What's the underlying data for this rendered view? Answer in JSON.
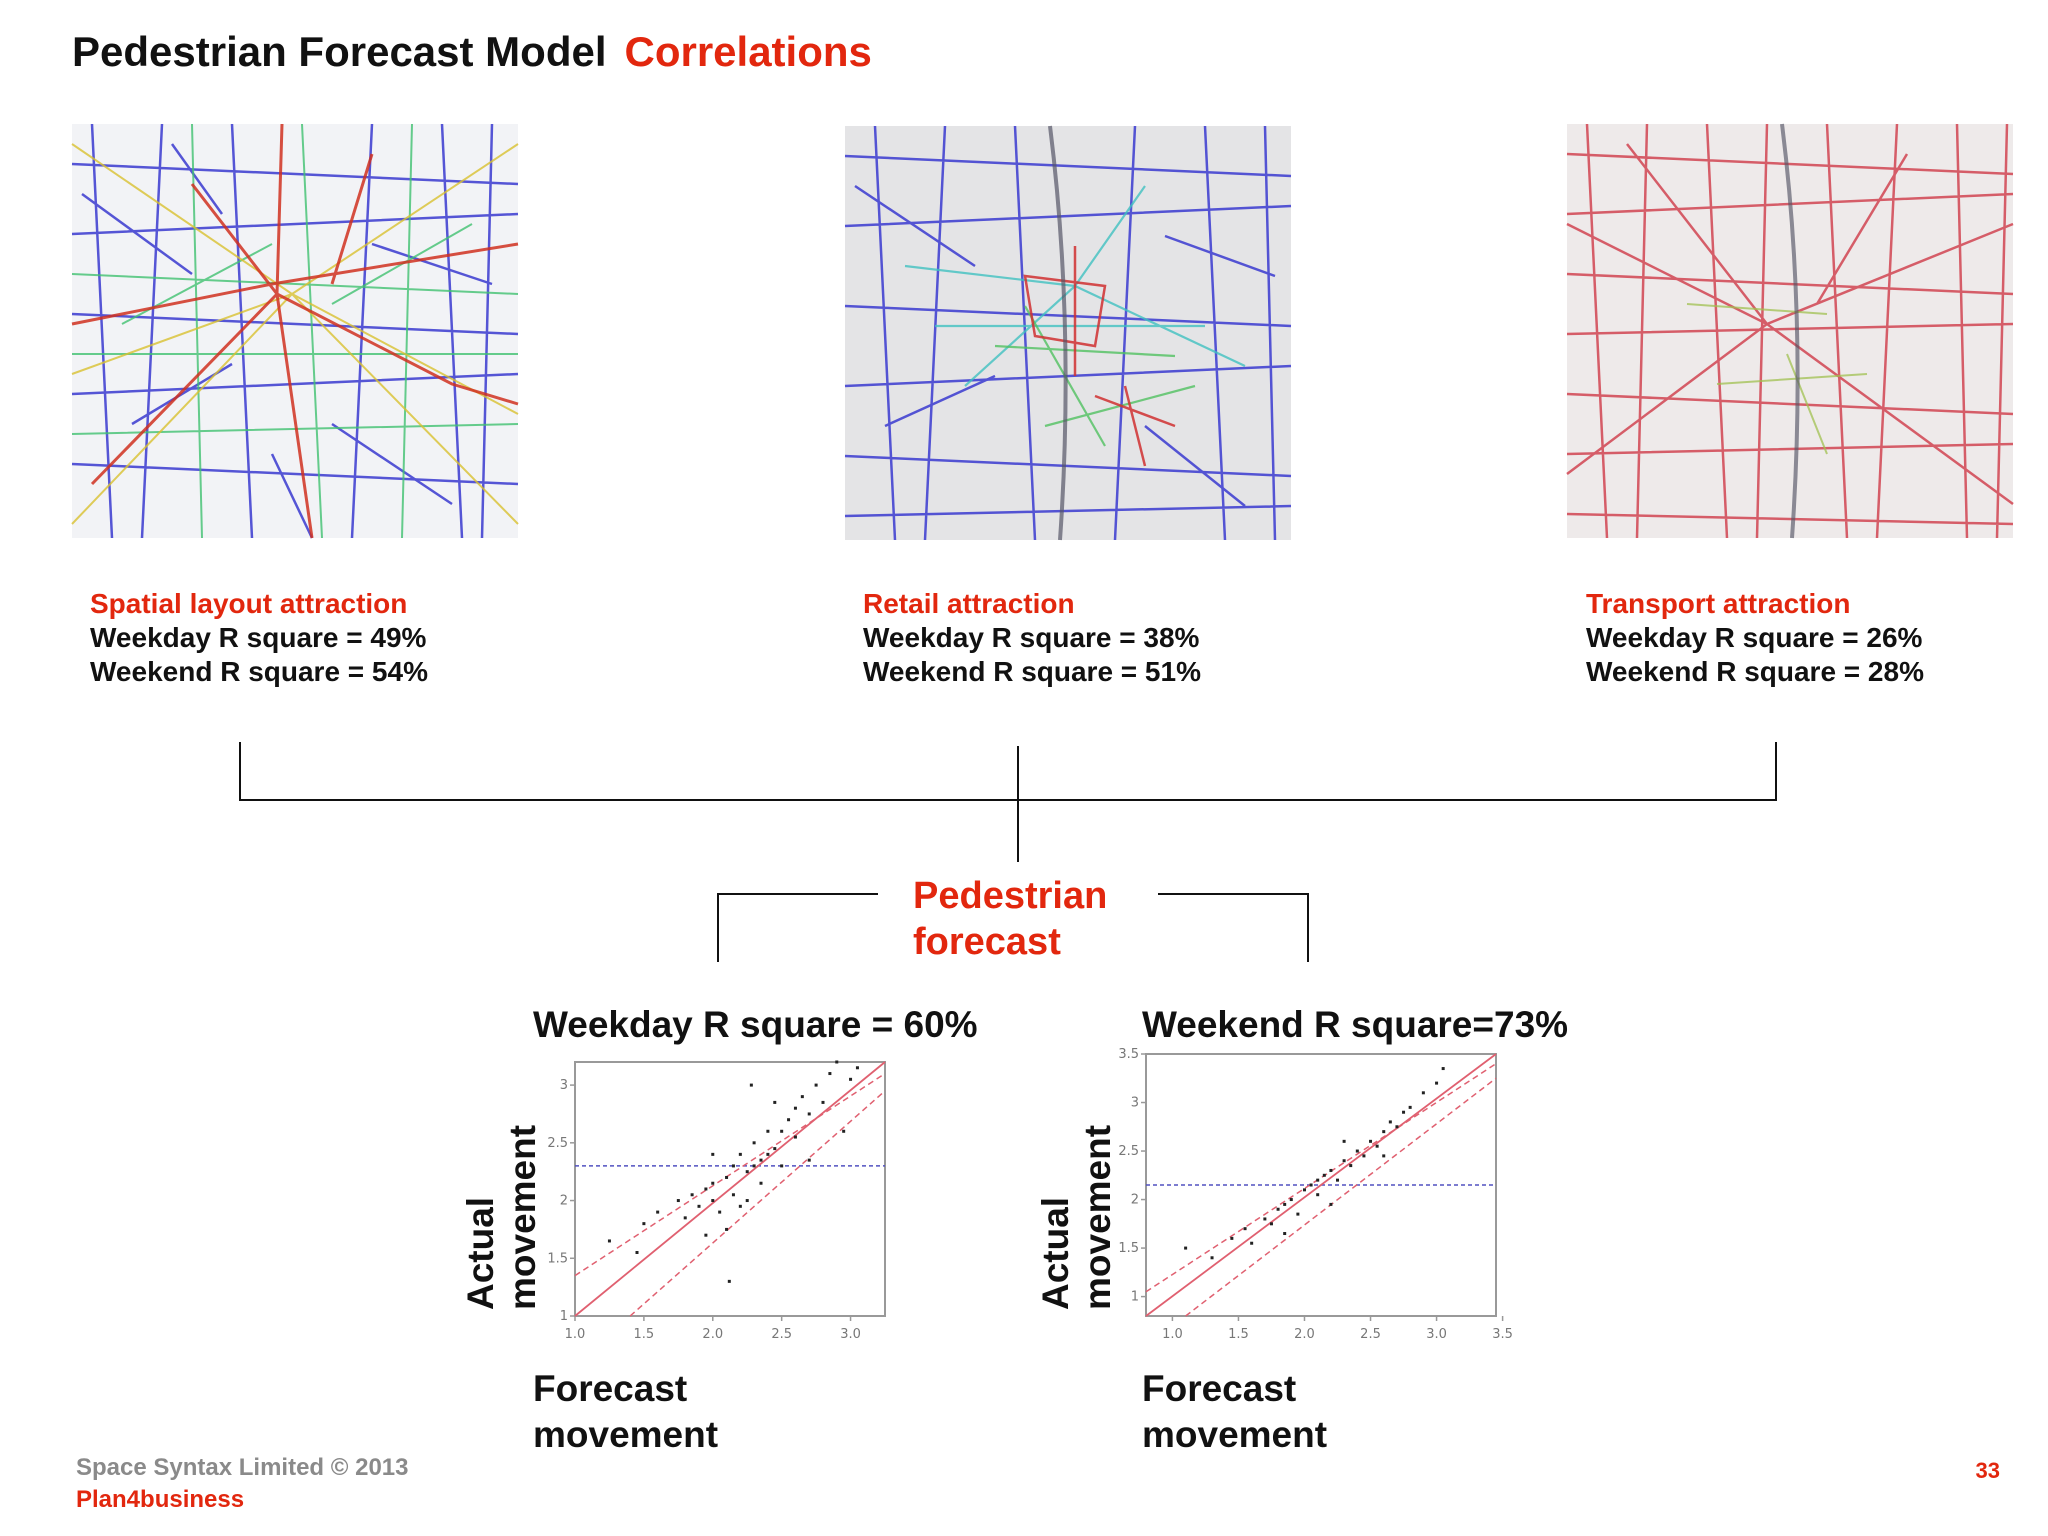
{
  "title": {
    "main": "Pedestrian Forecast Model",
    "accent": "Correlations"
  },
  "maps": [
    {
      "heading": "Spatial layout attraction",
      "weekday": "Weekday  R square = 49%",
      "weekend": "Weekend  R square = 54%"
    },
    {
      "heading": "Retail attraction",
      "weekday": "Weekday  R square = 38%",
      "weekend": "Weekend  R square = 51%"
    },
    {
      "heading": "Transport attraction",
      "weekday": "Weekday  R square = 26%",
      "weekend": "Weekend  R square = 28%"
    }
  ],
  "result": {
    "line1": "Pedestrian",
    "line2": "forecast"
  },
  "colors": {
    "accent": "#e2270e",
    "fit_line": "#e06070",
    "mean_line": "#5050c0",
    "point": "#222222"
  },
  "chart_data": [
    {
      "type": "scatter",
      "title": "Weekday R square = 60%",
      "xlabel": [
        "Forecast",
        "movement"
      ],
      "ylabel": [
        "Actual",
        "movement"
      ],
      "xlim": [
        1.0,
        3.25
      ],
      "ylim": [
        1.0,
        3.2
      ],
      "xticks": [
        "1.0",
        "1.5",
        "2.0",
        "2.5",
        "3.0"
      ],
      "yticks": [
        "1",
        "1.5",
        "2",
        "2.5",
        "3"
      ],
      "mean_y": 2.3,
      "fit": [
        [
          1.0,
          1.0
        ],
        [
          3.25,
          3.2
        ]
      ],
      "conf_upper": [
        [
          1.0,
          1.35
        ],
        [
          3.25,
          3.1
        ]
      ],
      "conf_lower": [
        [
          1.4,
          1.0
        ],
        [
          3.25,
          2.95
        ]
      ],
      "points": [
        [
          1.25,
          1.65
        ],
        [
          1.45,
          1.55
        ],
        [
          1.5,
          1.8
        ],
        [
          1.6,
          1.9
        ],
        [
          1.75,
          2.0
        ],
        [
          1.8,
          1.85
        ],
        [
          1.85,
          2.05
        ],
        [
          1.9,
          1.95
        ],
        [
          1.95,
          2.1
        ],
        [
          2.0,
          2.0
        ],
        [
          2.0,
          2.15
        ],
        [
          2.05,
          1.9
        ],
        [
          2.1,
          2.2
        ],
        [
          2.1,
          1.75
        ],
        [
          2.15,
          2.3
        ],
        [
          2.15,
          2.05
        ],
        [
          2.2,
          2.4
        ],
        [
          2.2,
          1.95
        ],
        [
          2.25,
          2.25
        ],
        [
          2.3,
          2.3
        ],
        [
          2.3,
          2.5
        ],
        [
          2.35,
          2.35
        ],
        [
          2.35,
          2.15
        ],
        [
          2.4,
          2.6
        ],
        [
          2.4,
          2.4
        ],
        [
          2.45,
          2.45
        ],
        [
          2.5,
          2.6
        ],
        [
          2.5,
          2.3
        ],
        [
          2.55,
          2.7
        ],
        [
          2.6,
          2.8
        ],
        [
          2.6,
          2.55
        ],
        [
          2.65,
          2.9
        ],
        [
          2.7,
          2.75
        ],
        [
          2.75,
          3.0
        ],
        [
          2.8,
          2.85
        ],
        [
          2.85,
          3.1
        ],
        [
          2.9,
          3.2
        ],
        [
          2.95,
          2.6
        ],
        [
          3.0,
          3.05
        ],
        [
          3.05,
          3.15
        ],
        [
          2.25,
          2.0
        ],
        [
          2.28,
          3.0
        ],
        [
          2.12,
          1.3
        ],
        [
          1.95,
          1.7
        ],
        [
          2.0,
          2.4
        ],
        [
          2.45,
          2.85
        ],
        [
          2.7,
          2.35
        ]
      ]
    },
    {
      "type": "scatter",
      "title": "Weekend R square=73%",
      "xlabel": [
        "Forecast",
        "movement"
      ],
      "ylabel": [
        "Actual",
        "movement"
      ],
      "xlim": [
        0.8,
        3.45
      ],
      "ylim": [
        0.8,
        3.5
      ],
      "xticks": [
        "1.0",
        "1.5",
        "2.0",
        "2.5",
        "3.0",
        "3.5"
      ],
      "yticks": [
        "1",
        "1.5",
        "2",
        "2.5",
        "3",
        "3.5"
      ],
      "mean_y": 2.15,
      "fit": [
        [
          0.8,
          0.8
        ],
        [
          3.45,
          3.5
        ]
      ],
      "conf_upper": [
        [
          0.8,
          1.05
        ],
        [
          3.45,
          3.4
        ]
      ],
      "conf_lower": [
        [
          1.1,
          0.8
        ],
        [
          3.45,
          3.25
        ]
      ],
      "points": [
        [
          1.1,
          1.5
        ],
        [
          1.3,
          1.4
        ],
        [
          1.45,
          1.6
        ],
        [
          1.55,
          1.7
        ],
        [
          1.6,
          1.55
        ],
        [
          1.7,
          1.8
        ],
        [
          1.75,
          1.75
        ],
        [
          1.8,
          1.9
        ],
        [
          1.85,
          1.95
        ],
        [
          1.9,
          2.0
        ],
        [
          1.95,
          1.85
        ],
        [
          2.0,
          2.1
        ],
        [
          2.05,
          2.15
        ],
        [
          2.1,
          2.05
        ],
        [
          2.1,
          2.2
        ],
        [
          2.15,
          2.25
        ],
        [
          2.2,
          2.3
        ],
        [
          2.25,
          2.2
        ],
        [
          2.3,
          2.4
        ],
        [
          2.35,
          2.35
        ],
        [
          2.4,
          2.5
        ],
        [
          2.45,
          2.45
        ],
        [
          2.5,
          2.6
        ],
        [
          2.55,
          2.55
        ],
        [
          2.6,
          2.7
        ],
        [
          2.65,
          2.8
        ],
        [
          2.7,
          2.75
        ],
        [
          2.75,
          2.9
        ],
        [
          2.8,
          2.95
        ],
        [
          2.9,
          3.1
        ],
        [
          3.0,
          3.2
        ],
        [
          3.05,
          3.35
        ],
        [
          2.2,
          1.95
        ],
        [
          1.85,
          1.65
        ],
        [
          2.3,
          2.6
        ],
        [
          2.6,
          2.45
        ]
      ]
    }
  ]
}
